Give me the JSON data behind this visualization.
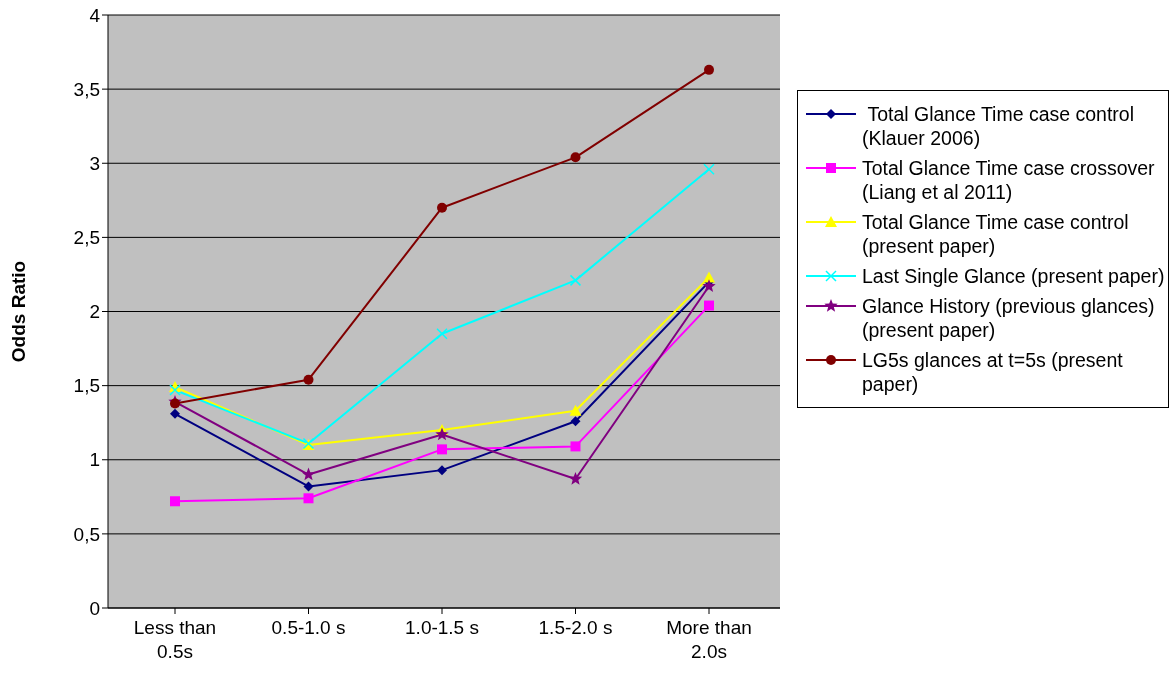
{
  "chart_data": {
    "type": "line",
    "ylabel": "Odds Ratio",
    "categories": [
      "Less than 0.5s",
      "0.5-1.0 s",
      "1.0-1.5 s",
      "1.5-2.0 s",
      "More than 2.0s"
    ],
    "ylim": [
      0,
      4
    ],
    "yticks": [
      0,
      {
        "value": 0.5,
        "label": "0,5"
      },
      1,
      {
        "value": 1.5,
        "label": "1,5"
      },
      2,
      {
        "value": 2.5,
        "label": "2,5"
      },
      3,
      {
        "value": 3.5,
        "label": "3,5"
      },
      4
    ],
    "grid": "y",
    "legend": "right",
    "series": [
      {
        "name": " Total Glance Time case control (Klauer 2006)",
        "color": "#000080",
        "marker": "diamond",
        "values": [
          1.31,
          0.82,
          0.93,
          1.26,
          2.2
        ]
      },
      {
        "name": "Total Glance Time case crossover (Liang et al 2011)",
        "color": "#ff00ff",
        "marker": "square",
        "values": [
          0.72,
          0.74,
          1.07,
          1.09,
          2.04
        ]
      },
      {
        "name": "Total Glance Time case control (present paper)",
        "color": "#ffff00",
        "marker": "triangle",
        "values": [
          1.49,
          1.1,
          1.2,
          1.33,
          2.23
        ]
      },
      {
        "name": "Last Single Glance (present paper)",
        "color": "#00ffff",
        "marker": "cross",
        "values": [
          1.47,
          1.11,
          1.85,
          2.21,
          2.96
        ]
      },
      {
        "name": "Glance History (previous glances) (present paper)",
        "color": "#800080",
        "marker": "star",
        "values": [
          1.39,
          0.9,
          1.17,
          0.87,
          2.17
        ]
      },
      {
        "name": "LG5s glances at t=5s (present paper)",
        "color": "#800000",
        "marker": "circle",
        "values": [
          1.38,
          1.54,
          2.7,
          3.04,
          3.63
        ]
      }
    ]
  }
}
